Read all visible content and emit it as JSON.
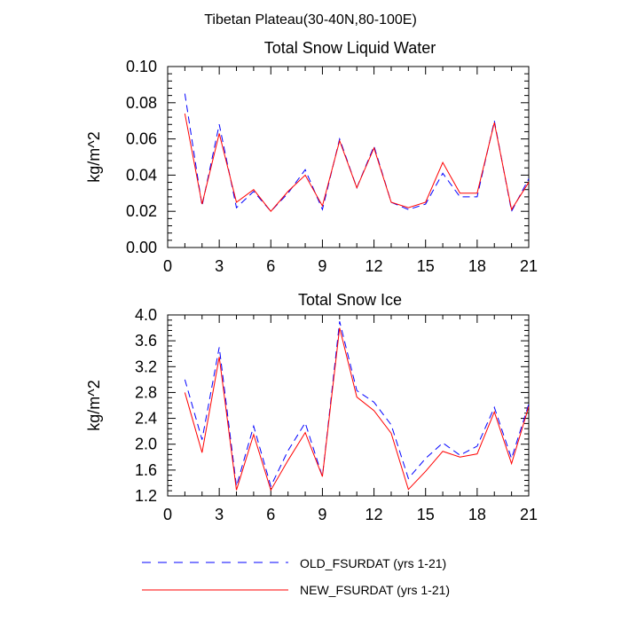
{
  "figure": {
    "title": "Tibetan Plateau(30-40N,80-100E)"
  },
  "legend": {
    "entries": [
      {
        "label": "OLD_FSURDAT (yrs 1-21)",
        "color": "#0000ff",
        "style": "dashed"
      },
      {
        "label": "NEW_FSURDAT (yrs 1-21)",
        "color": "#ff0000",
        "style": "solid"
      }
    ]
  },
  "chart_data": [
    {
      "type": "line",
      "title": "Total Snow Liquid Water",
      "xlabel": "",
      "ylabel": "kg/m^2",
      "xlim": [
        0,
        21
      ],
      "ylim": [
        0.0,
        0.1
      ],
      "xticks": [
        0,
        3,
        6,
        9,
        12,
        15,
        18,
        21
      ],
      "xtick_labels": [
        "0",
        "3",
        "6",
        "9",
        "12",
        "15",
        "18",
        "21"
      ],
      "yticks": [
        0.0,
        0.02,
        0.04,
        0.06,
        0.08,
        0.1
      ],
      "ytick_labels": [
        "0.00",
        "0.02",
        "0.04",
        "0.06",
        "0.08",
        "0.10"
      ],
      "x": [
        1,
        2,
        3,
        4,
        5,
        6,
        7,
        8,
        9,
        10,
        11,
        12,
        13,
        14,
        15,
        16,
        17,
        18,
        19,
        20,
        21
      ],
      "series": [
        {
          "name": "OLD_FSURDAT (yrs 1-21)",
          "color": "#0000ff",
          "style": "dashed",
          "values": [
            0.085,
            0.023,
            0.068,
            0.022,
            0.031,
            0.02,
            0.03,
            0.043,
            0.021,
            0.06,
            0.033,
            0.056,
            0.025,
            0.021,
            0.024,
            0.041,
            0.028,
            0.028,
            0.07,
            0.02,
            0.038
          ]
        },
        {
          "name": "NEW_FSURDAT (yrs 1-21)",
          "color": "#ff0000",
          "style": "solid",
          "values": [
            0.074,
            0.024,
            0.063,
            0.025,
            0.032,
            0.02,
            0.031,
            0.04,
            0.023,
            0.059,
            0.033,
            0.055,
            0.025,
            0.022,
            0.025,
            0.047,
            0.03,
            0.03,
            0.069,
            0.021,
            0.036
          ]
        }
      ]
    },
    {
      "type": "line",
      "title": "Total Snow Ice",
      "xlabel": "",
      "ylabel": "kg/m^2",
      "xlim": [
        0,
        21
      ],
      "ylim": [
        1.2,
        4.0
      ],
      "xticks": [
        0,
        3,
        6,
        9,
        12,
        15,
        18,
        21
      ],
      "xtick_labels": [
        "0",
        "3",
        "6",
        "9",
        "12",
        "15",
        "18",
        "21"
      ],
      "yticks": [
        1.2,
        1.6,
        2.0,
        2.4,
        2.8,
        3.2,
        3.6,
        4.0
      ],
      "ytick_labels": [
        "1.2",
        "1.6",
        "2.0",
        "2.4",
        "2.8",
        "3.2",
        "3.6",
        "4.0"
      ],
      "x": [
        1,
        2,
        3,
        4,
        5,
        6,
        7,
        8,
        9,
        10,
        11,
        12,
        13,
        14,
        15,
        16,
        17,
        18,
        19,
        20,
        21
      ],
      "series": [
        {
          "name": "OLD_FSURDAT (yrs 1-21)",
          "color": "#0000ff",
          "style": "dashed",
          "values": [
            3.0,
            2.07,
            3.5,
            1.35,
            2.28,
            1.35,
            1.9,
            2.33,
            1.5,
            3.9,
            2.83,
            2.65,
            2.3,
            1.47,
            1.78,
            2.02,
            1.83,
            1.97,
            2.57,
            1.78,
            2.62
          ]
        },
        {
          "name": "NEW_FSURDAT (yrs 1-21)",
          "color": "#ff0000",
          "style": "solid",
          "values": [
            2.8,
            1.87,
            3.35,
            1.29,
            2.15,
            1.29,
            1.75,
            2.18,
            1.5,
            3.8,
            2.73,
            2.52,
            2.17,
            1.3,
            1.58,
            1.89,
            1.8,
            1.85,
            2.5,
            1.7,
            2.58
          ]
        }
      ]
    }
  ]
}
